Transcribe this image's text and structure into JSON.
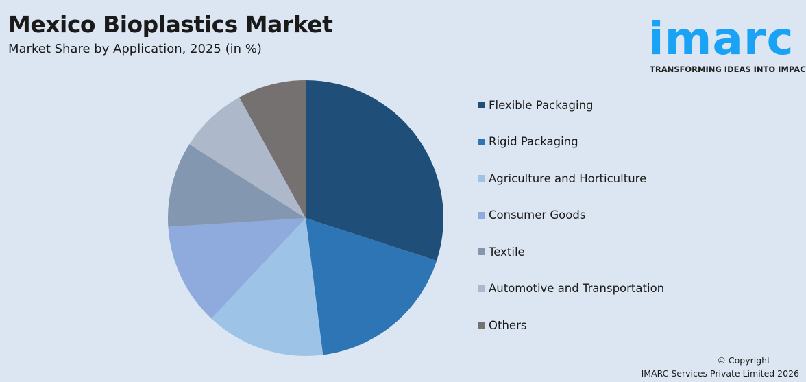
{
  "header": {
    "title": "Mexico Bioplastics Market",
    "subtitle": "Market Share by Application, 2025 (in %)"
  },
  "logo": {
    "word": "imarc",
    "tagline": "TRANSFORMING IDEAS INTO IMPACT",
    "color": "#1aa3f5"
  },
  "chart_data": {
    "type": "pie",
    "title": "Mexico Bioplastics Market",
    "subtitle": "Market Share by Application, 2025 (in %)",
    "legend_position": "right",
    "start_angle": "12 o'clock, clockwise",
    "categories": [
      "Flexible Packaging",
      "Rigid Packaging",
      "Agriculture and Horticulture",
      "Consumer Goods",
      "Textile",
      "Automotive and Transportation",
      "Others"
    ],
    "values": [
      30,
      18,
      14,
      12,
      10,
      8,
      8
    ],
    "colors": [
      "#1f4e79",
      "#2e75b6",
      "#9dc3e6",
      "#8faadc",
      "#8497b0",
      "#adb9ca",
      "#767171"
    ]
  },
  "footer": {
    "copyright": "© Copyright",
    "company": "IMARC Services Private Limited 2026"
  }
}
